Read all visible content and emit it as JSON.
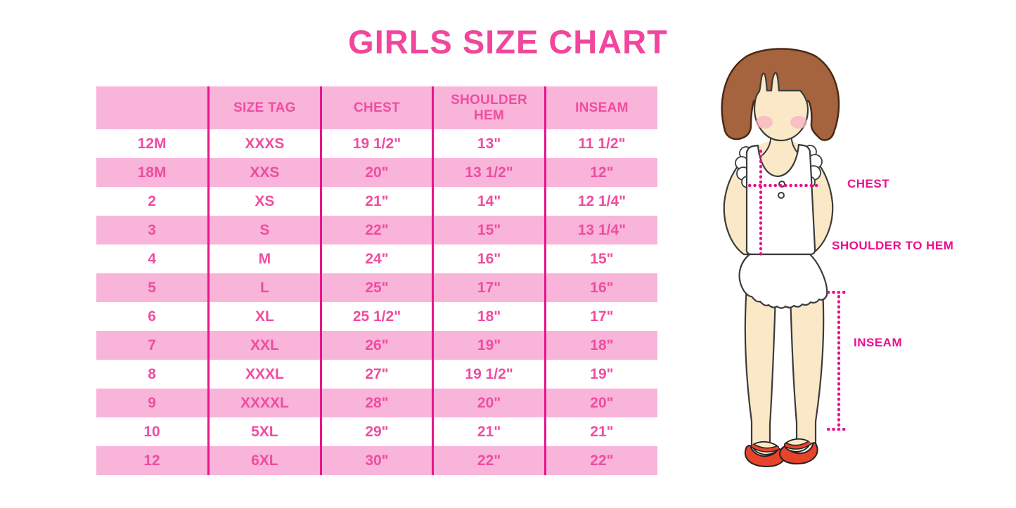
{
  "page": {
    "title": "GIRLS SIZE CHART"
  },
  "colors": {
    "title_pink": "#F0479C",
    "table_text_pink": "#EF4DA0",
    "row_background_pink": "#F9B4D9",
    "column_divider_pink": "#E9158A",
    "measure_label_magenta": "#EC0E8F",
    "hair_brown": "#A5633E",
    "skin_cream": "#FBE8C7",
    "blush_pink": "#F5B3C0",
    "shoe_red": "#E8432B"
  },
  "chart_data": {
    "type": "table",
    "title": "GIRLS SIZE CHART",
    "columns": [
      "",
      "SIZE TAG",
      "CHEST",
      "SHOULDER HEM",
      "INSEAM"
    ],
    "rows": [
      [
        "12M",
        "XXXS",
        "19 1/2\"",
        "13\"",
        "11 1/2\""
      ],
      [
        "18M",
        "XXS",
        "20\"",
        "13 1/2\"",
        "12\""
      ],
      [
        "2",
        "XS",
        "21\"",
        "14\"",
        "12 1/4\""
      ],
      [
        "3",
        "S",
        "22\"",
        "15\"",
        "13 1/4\""
      ],
      [
        "4",
        "M",
        "24\"",
        "16\"",
        "15\""
      ],
      [
        "5",
        "L",
        "25\"",
        "17\"",
        "16\""
      ],
      [
        "6",
        "XL",
        "25 1/2\"",
        "18\"",
        "17\""
      ],
      [
        "7",
        "XXL",
        "26\"",
        "19\"",
        "18\""
      ],
      [
        "8",
        "XXXL",
        "27\"",
        "19 1/2\"",
        "19\""
      ],
      [
        "9",
        "XXXXL",
        "28\"",
        "20\"",
        "20\""
      ],
      [
        "10",
        "5XL",
        "29\"",
        "21\"",
        "21\""
      ],
      [
        "12",
        "6XL",
        "30\"",
        "22\"",
        "22\""
      ]
    ],
    "row_striping": "white and pink alternating, header pink",
    "legend_position": "none",
    "grid": "vertical pink dividers only"
  },
  "figure": {
    "description": "cartoon girl illustration with measurement guides",
    "labels": {
      "chest": "CHEST",
      "shoulder_to_hem": "SHOULDER TO HEM",
      "inseam": "INSEAM"
    }
  }
}
